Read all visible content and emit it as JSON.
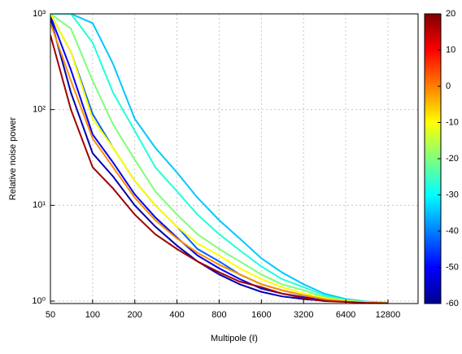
{
  "chart_data": {
    "type": "line",
    "xlabel": "Multipole (ℓ)",
    "ylabel": "Relative noise power",
    "xscale": "log",
    "yscale": "log",
    "grid": true,
    "xlim": [
      50,
      21000
    ],
    "ylim": [
      0.943,
      1000
    ],
    "xticks": [
      50,
      100,
      200,
      400,
      800,
      1600,
      3200,
      6400,
      12800
    ],
    "yticks": [
      {
        "value": 1,
        "label": "10⁰"
      },
      {
        "value": 10,
        "label": "10¹"
      },
      {
        "value": 100,
        "label": "10²"
      },
      {
        "value": 1000,
        "label": "10³"
      }
    ],
    "x": [
      50,
      70,
      100,
      140,
      200,
      280,
      400,
      560,
      800,
      1120,
      1600,
      2240,
      3200,
      4480,
      6400,
      8960,
      12800
    ],
    "series": [
      {
        "color": "#0000b0",
        "values": [
          900,
          150,
          35,
          20,
          10,
          6,
          3.8,
          2.6,
          1.9,
          1.5,
          1.25,
          1.12,
          1.05,
          1.01,
          0.99,
          0.97,
          0.95
        ]
      },
      {
        "color": "#0000ff",
        "values": [
          950,
          260,
          55,
          28,
          13,
          7.5,
          4.6,
          3.0,
          2.2,
          1.7,
          1.35,
          1.2,
          1.1,
          1.03,
          1.0,
          0.97,
          0.95
        ]
      },
      {
        "color": "#0060ff",
        "values": [
          1000,
          400,
          90,
          40,
          18,
          10,
          6,
          3.5,
          2.6,
          1.9,
          1.5,
          1.3,
          1.15,
          1.06,
          1.01,
          0.98,
          0.96
        ]
      },
      {
        "color": "#00c8ff",
        "values": [
          1000,
          1000,
          800,
          300,
          80,
          40,
          22,
          12,
          7,
          4.5,
          2.8,
          2.0,
          1.5,
          1.2,
          1.05,
          0.99,
          0.96
        ]
      },
      {
        "color": "#20ffd8",
        "values": [
          1000,
          1000,
          500,
          150,
          60,
          25,
          14,
          8,
          5,
          3.4,
          2.3,
          1.7,
          1.4,
          1.15,
          1.03,
          0.98,
          0.96
        ]
      },
      {
        "color": "#7dff7a",
        "values": [
          1000,
          700,
          200,
          70,
          30,
          14,
          8,
          5,
          3.5,
          2.6,
          1.9,
          1.5,
          1.3,
          1.1,
          1.02,
          0.98,
          0.96
        ]
      },
      {
        "color": "#ffff00",
        "values": [
          1000,
          400,
          80,
          40,
          18,
          10,
          6,
          4,
          3,
          2.2,
          1.7,
          1.4,
          1.2,
          1.08,
          1.0,
          0.97,
          0.95
        ]
      },
      {
        "color": "#ff9000",
        "values": [
          800,
          200,
          50,
          25,
          12,
          7,
          4.5,
          3.2,
          2.4,
          1.9,
          1.5,
          1.3,
          1.15,
          1.05,
          0.99,
          0.96,
          0.95
        ]
      },
      {
        "color": "#a00000",
        "values": [
          600,
          100,
          25,
          15,
          8,
          5,
          3.5,
          2.6,
          2.0,
          1.6,
          1.4,
          1.2,
          1.08,
          1.0,
          0.98,
          0.96,
          0.95
        ]
      }
    ],
    "colorbar": {
      "lim": [
        -60,
        20
      ],
      "ticks": [
        -60,
        -50,
        -40,
        -30,
        -20,
        -10,
        0,
        10,
        20
      ]
    }
  }
}
